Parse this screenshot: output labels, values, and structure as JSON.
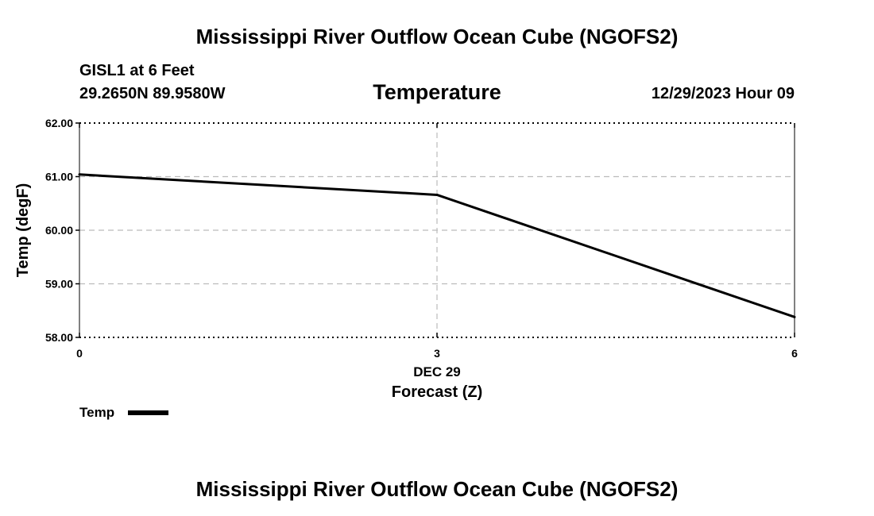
{
  "header": {
    "title_top": "Mississippi River Outflow Ocean Cube (NGOFS2)",
    "station": "GISL1 at 6 Feet",
    "coords": "29.2650N  89.9580W",
    "chart_title": "Temperature",
    "timestamp": "12/29/2023 Hour 09",
    "title_bottom": "Mississippi River Outflow Ocean Cube (NGOFS2)"
  },
  "chart_data": {
    "type": "line",
    "title": "Temperature",
    "xlabel": "Forecast (Z)",
    "ylabel": "Temp (degF)",
    "xlim": [
      0,
      6
    ],
    "ylim": [
      58,
      62
    ],
    "x_ticks": [
      0,
      3,
      6
    ],
    "x_tick_labels": [
      "0",
      "3",
      "6"
    ],
    "x_date_label": "DEC 29",
    "y_ticks": [
      58,
      59,
      60,
      61,
      62
    ],
    "y_tick_labels": [
      "58.00",
      "59.00",
      "60.00",
      "61.00",
      "62.00"
    ],
    "grid": true,
    "legend_position": "bottom-left",
    "series": [
      {
        "name": "Temp",
        "x": [
          0,
          3,
          6
        ],
        "values": [
          61.04,
          60.66,
          58.38
        ],
        "color": "#000000"
      }
    ]
  },
  "colors": {
    "line": "#000000",
    "grid": "#bbbbbb",
    "background": "#ffffff"
  }
}
